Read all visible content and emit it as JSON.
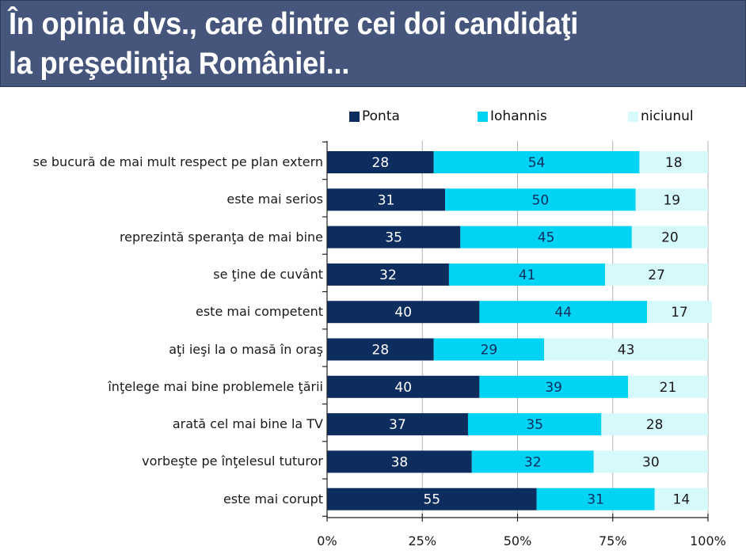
{
  "title": {
    "line1": "În opinia dvs., care dintre cei doi candidaţi",
    "line2": "la preşedinţia României..."
  },
  "colors": {
    "title_bg": "#45557b",
    "ponta": "#0c2d5e",
    "iohannis": "#00d3f4",
    "niciunul": "#d6f9fc",
    "grid": "#b0b0b0"
  },
  "chart_data": {
    "type": "bar",
    "orientation": "horizontal",
    "stacked": true,
    "title": "În opinia dvs., care dintre cei doi candidaţi la preşedinţia României...",
    "xlabel": "",
    "ylabel": "",
    "xlim": [
      0,
      100
    ],
    "xticks": [
      "0%",
      "25%",
      "50%",
      "75%",
      "100%"
    ],
    "grid": true,
    "legend_position": "top",
    "categories": [
      "se bucură de mai mult respect pe plan extern",
      "este mai serios",
      "reprezintă speranţa de mai bine",
      "se ţine de cuvânt",
      "este mai competent",
      "aţi ieşi la o masă în oraş",
      "înţelege mai bine problemele ţării",
      "arată cel mai bine la TV",
      "vorbeşte pe înţelesul tuturor",
      "este mai corupt"
    ],
    "series": [
      {
        "name": "Ponta",
        "values": [
          28,
          31,
          35,
          32,
          40,
          28,
          40,
          37,
          38,
          55
        ]
      },
      {
        "name": "Iohannis",
        "values": [
          54,
          50,
          45,
          41,
          44,
          29,
          39,
          35,
          32,
          31
        ]
      },
      {
        "name": "niciunul",
        "values": [
          18,
          19,
          20,
          27,
          17,
          43,
          21,
          28,
          30,
          14
        ]
      }
    ]
  }
}
